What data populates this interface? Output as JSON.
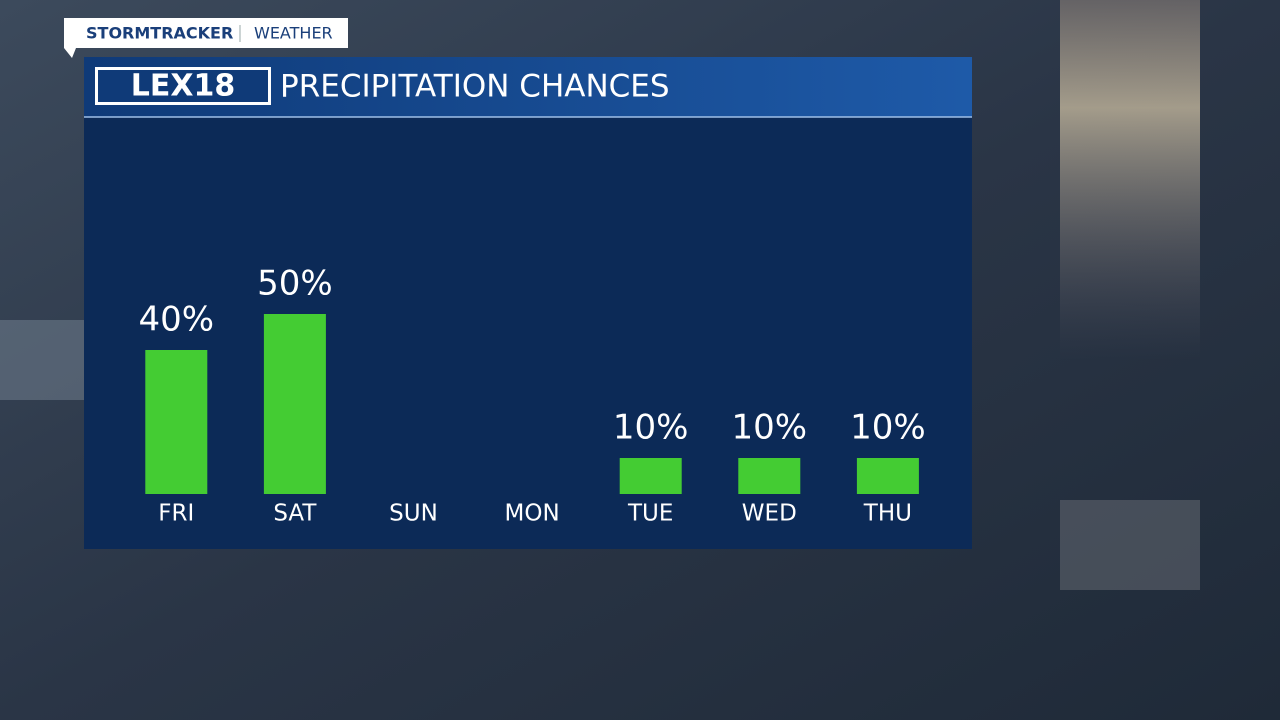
{
  "chart_data": {
    "type": "bar",
    "brand": "STORMTRACKER",
    "section": "WEATHER",
    "logo": "LEX18",
    "title": "PRECIPITATION CHANCES",
    "categories": [
      "FRI",
      "SAT",
      "SUN",
      "MON",
      "TUE",
      "WED",
      "THU"
    ],
    "values": [
      40,
      50,
      0,
      0,
      10,
      10,
      10
    ],
    "value_labels": [
      "40%",
      "50%",
      null,
      null,
      "10%",
      "10%",
      "10%"
    ],
    "color": "#44cc33",
    "ylim": [
      0,
      100
    ]
  }
}
